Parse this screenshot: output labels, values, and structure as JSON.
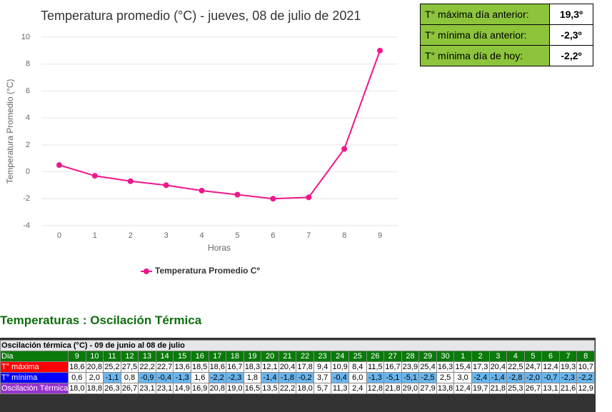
{
  "chart_data": {
    "type": "line",
    "title": "Temperatura promedio (°C) - jueves, 08 de julio de 2021",
    "x_label": "Horas",
    "y_label": "Temperatura Promedio (°C)",
    "x": [
      0,
      1,
      2,
      3,
      4,
      5,
      6,
      7,
      8,
      9
    ],
    "series": [
      {
        "name": "Temperatura Promedio Cº",
        "color": "#f0168c",
        "values": [
          0.5,
          -0.3,
          -0.7,
          -1.0,
          -1.4,
          -1.7,
          -2.0,
          -1.9,
          1.7,
          9.0
        ]
      }
    ],
    "xlim": [
      -0.5,
      9.5
    ],
    "xticks": [
      0,
      1,
      2,
      3,
      4,
      5,
      6,
      7,
      8,
      9
    ],
    "ylim": [
      -4,
      10
    ],
    "yticks": [
      -4,
      -2,
      0,
      2,
      4,
      6,
      8,
      10
    ],
    "grid": true,
    "legend": "bottom"
  },
  "summary": {
    "rows": [
      {
        "label": "T° máxima día anterior:",
        "value": "19,3º"
      },
      {
        "label": "T° mínima día anterior:",
        "value": "-2,3º"
      },
      {
        "label": "T° mínima día de hoy:",
        "value": "-2,2º"
      }
    ]
  },
  "section_title": "Temperaturas : Oscilación Térmica",
  "table": {
    "caption": "Oscilación térmica (°C) - 09 de junio al 08 de julio",
    "header": {
      "label": "Dia",
      "days": [
        9,
        10,
        11,
        12,
        13,
        14,
        15,
        16,
        17,
        18,
        19,
        20,
        21,
        22,
        23,
        24,
        25,
        26,
        27,
        28,
        29,
        30,
        1,
        2,
        3,
        4,
        5,
        6,
        7,
        8
      ]
    },
    "rows": [
      {
        "label": "T° máxima",
        "color": "#ff0000",
        "cells": [
          "18,6",
          "20,8",
          "25,2",
          "27,5",
          "22,2",
          "22,7",
          "13,6",
          "18,5",
          "18,6",
          "16,7",
          "18,3",
          "12,1",
          "20,4",
          "17,8",
          "9,4",
          "10,9",
          "8,4",
          "11,5",
          "16,7",
          "23,9",
          "25,4",
          "16,3",
          "15,4",
          "17,3",
          "20,4",
          "22,5",
          "24,7",
          "12,4",
          "19,3",
          "10,7"
        ]
      },
      {
        "label": "T° mínima",
        "color": "#0000ff",
        "cells": [
          "0,6",
          "2,0",
          "-1,1",
          "0,8",
          "-0,9",
          "-0,4",
          "-1,3",
          "1,6",
          "-2,2",
          "-2,3",
          "1,8",
          "-1,4",
          "-1,8",
          "-0,2",
          "3,7",
          "-0,4",
          "6,0",
          "-1,3",
          "-5,1",
          "-5,1",
          "-2,5",
          "2,5",
          "3,0",
          "-2,4",
          "-1,4",
          "-2,8",
          "-2,0",
          "-0,7",
          "-2,3",
          "-2,2"
        ]
      },
      {
        "label": "Oscilación Térmica",
        "color": "#9933cc",
        "cells": [
          "18,0",
          "18,8",
          "26,3",
          "26,7",
          "23,1",
          "23,1",
          "14,9",
          "16,9",
          "20,8",
          "19,0",
          "16,5",
          "13,5",
          "22,2",
          "18,0",
          "5,7",
          "11,3",
          "2,4",
          "12,8",
          "21,8",
          "29,0",
          "27,9",
          "13,8",
          "12,4",
          "19,7",
          "21,8",
          "25,3",
          "26,7",
          "13,1",
          "21,6",
          "12,9"
        ]
      }
    ]
  }
}
